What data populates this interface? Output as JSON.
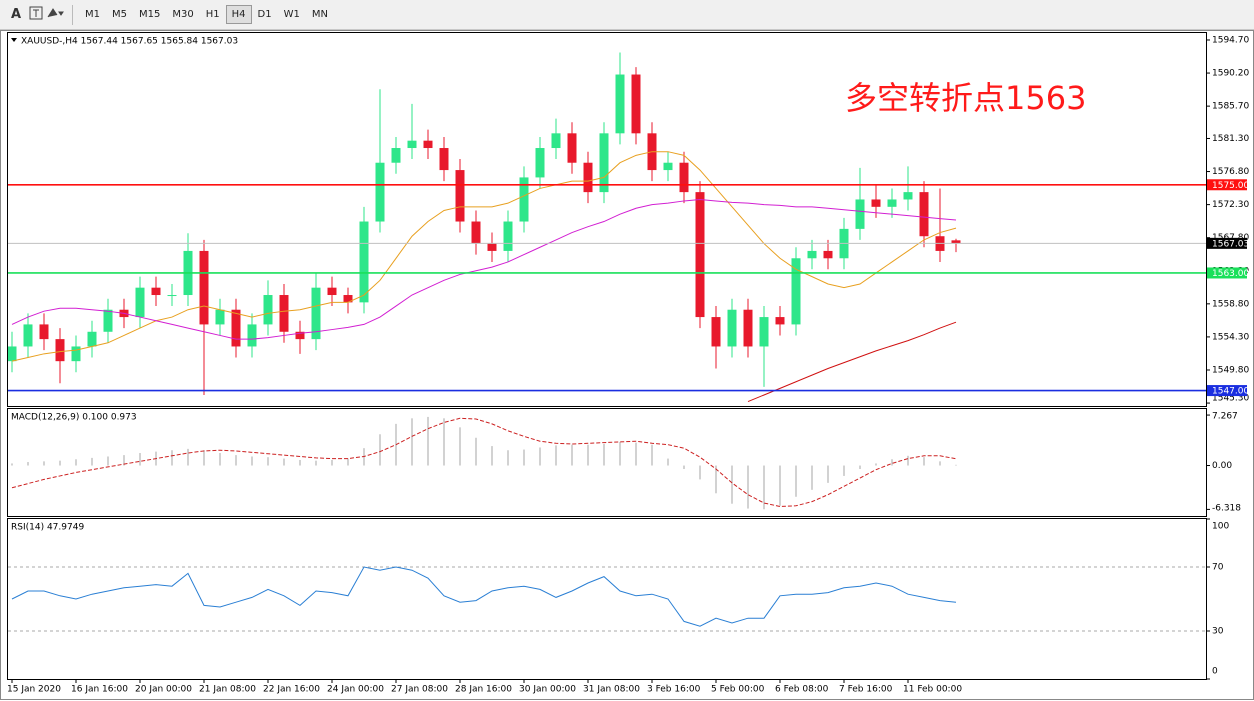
{
  "toolbar": {
    "tools": [
      "A"
    ],
    "timeframes": [
      "M1",
      "M5",
      "M15",
      "M30",
      "H1",
      "H4",
      "D1",
      "W1",
      "MN"
    ],
    "active": "H4"
  },
  "chart_data": [
    {
      "type": "candlestick",
      "title": "XAUUSD-,H4  1567.44 1567.65 1565.84 1567.03",
      "annotation": "多空转折点1563",
      "annotation_color": "#ff1a1a",
      "up_color": "#2ee68a",
      "down_color": "#e8192c",
      "categories": [
        "15 Jan 2020",
        null,
        null,
        null,
        "16 Jan 16:00",
        null,
        null,
        null,
        "20 Jan 00:00",
        null,
        null,
        null,
        "21 Jan 08:00",
        null,
        null,
        null,
        "22 Jan 16:00",
        null,
        null,
        null,
        "24 Jan 00:00",
        null,
        null,
        null,
        "27 Jan 08:00",
        null,
        null,
        null,
        "28 Jan 16:00",
        null,
        null,
        null,
        "30 Jan 00:00",
        null,
        null,
        null,
        "31 Jan 08:00",
        null,
        null,
        null,
        "3 Feb 16:00",
        null,
        null,
        null,
        "5 Feb 00:00",
        null,
        null,
        null,
        "6 Feb 08:00",
        null,
        null,
        null,
        "7 Feb 16:00",
        null,
        null,
        null,
        "11 Feb 00:00",
        null,
        null,
        null
      ],
      "open": [
        1551,
        1553,
        1556,
        1554,
        1551,
        1553,
        1555,
        1558,
        1557,
        1561,
        1560,
        1560,
        1566,
        1556,
        1558,
        1553,
        1556,
        1560,
        1555,
        1554,
        1561,
        1560,
        1559,
        1570,
        1578,
        1580,
        1581,
        1580,
        1577,
        1570,
        1567,
        1566,
        1570,
        1576,
        1580,
        1582,
        1578,
        1574,
        1582,
        1590,
        1582,
        1577,
        1578,
        1574,
        1557,
        1553,
        1558,
        1553,
        1557,
        1556,
        1565,
        1566,
        1565,
        1569,
        1573,
        1572,
        1573,
        1574,
        1568,
        1567.44
      ],
      "high": [
        1555,
        1557.5,
        1557.5,
        1555.5,
        1554.5,
        1556.5,
        1559.5,
        1559.5,
        1562.5,
        1562.5,
        1561.5,
        1568.4,
        1567.5,
        1559.5,
        1559.5,
        1557.5,
        1562,
        1561.5,
        1556.5,
        1563,
        1562.5,
        1561,
        1572,
        1588,
        1581.5,
        1586,
        1582.5,
        1581.5,
        1578.5,
        1571.5,
        1568.5,
        1571.5,
        1577.5,
        1581.5,
        1584,
        1583.5,
        1579.5,
        1583.5,
        1593,
        1591,
        1583.5,
        1579.5,
        1579.5,
        1575.5,
        1558.5,
        1559.5,
        1559.5,
        1558.5,
        1558.5,
        1566.5,
        1567.5,
        1567.5,
        1570.5,
        1577.3,
        1575,
        1574.5,
        1577.5,
        1575.5,
        1574.5,
        1567.65
      ],
      "low": [
        1549.5,
        1551.5,
        1552.5,
        1548,
        1549.5,
        1551.5,
        1553.5,
        1555.5,
        1555.5,
        1558.5,
        1558.5,
        1558.5,
        1546.4,
        1554.5,
        1551.5,
        1551.5,
        1554.5,
        1553.5,
        1552,
        1552.5,
        1558.5,
        1557.5,
        1557.5,
        1568.5,
        1576.5,
        1578.5,
        1578.5,
        1575.5,
        1568.5,
        1565.5,
        1564.5,
        1564.5,
        1568.5,
        1574.5,
        1578.5,
        1576.5,
        1572.5,
        1572.5,
        1580.5,
        1580.5,
        1575.5,
        1575.5,
        1572.5,
        1555.5,
        1550,
        1551.5,
        1551.5,
        1547.5,
        1554.5,
        1554.5,
        1563.5,
        1563.5,
        1563.5,
        1567.5,
        1570.5,
        1570.5,
        1571.5,
        1566.5,
        1564.5,
        1565.84
      ],
      "close": [
        1553,
        1556,
        1554,
        1551,
        1553,
        1555,
        1558,
        1557,
        1561,
        1560,
        1560,
        1566,
        1556,
        1558,
        1553,
        1556,
        1560,
        1555,
        1554,
        1561,
        1560,
        1559,
        1570,
        1578,
        1580,
        1581,
        1580,
        1577,
        1570,
        1567,
        1566,
        1570,
        1576,
        1580,
        1582,
        1578,
        1574,
        1582,
        1590,
        1582,
        1577,
        1578,
        1574,
        1557,
        1553,
        1558,
        1553,
        1557,
        1556,
        1565,
        1566,
        1565,
        1569,
        1573,
        1572,
        1573,
        1574,
        1568,
        1566,
        1567.03
      ],
      "overlays": [
        {
          "color": "#e8a020",
          "values": [
            1551,
            1551.5,
            1552,
            1552.3,
            1552.5,
            1553,
            1553.5,
            1554.5,
            1555.5,
            1556.5,
            1557,
            1558,
            1558.5,
            1558,
            1557.5,
            1557,
            1557.5,
            1557.8,
            1558,
            1558.5,
            1559,
            1559,
            1560,
            1562,
            1565,
            1568,
            1570,
            1571.5,
            1572,
            1572,
            1572,
            1572.5,
            1573.5,
            1574.5,
            1575,
            1575.5,
            1575.5,
            1576,
            1578,
            1579,
            1579.5,
            1579.5,
            1579,
            1577,
            1574.5,
            1572,
            1569.5,
            1567,
            1565,
            1563.5,
            1562.5,
            1561.5,
            1561,
            1561.5,
            1563,
            1564.5,
            1566,
            1567.5,
            1568.5,
            1569.1
          ]
        },
        {
          "color": "#d21fd2",
          "values": [
            1556,
            1557,
            1557.8,
            1558.2,
            1558.2,
            1558,
            1557.8,
            1557.5,
            1557,
            1556.5,
            1556,
            1555.5,
            1555,
            1554.5,
            1554,
            1554,
            1554.2,
            1554.5,
            1554.8,
            1555,
            1555.3,
            1555.6,
            1556,
            1557,
            1558.5,
            1560,
            1561,
            1562,
            1562.8,
            1563.3,
            1563.8,
            1564.5,
            1565.5,
            1566.5,
            1567.5,
            1568.5,
            1569.3,
            1570,
            1571,
            1571.8,
            1572.3,
            1572.5,
            1572.8,
            1573,
            1572.8,
            1572.6,
            1572.5,
            1572.3,
            1572.2,
            1572,
            1572,
            1571.8,
            1571.6,
            1571.4,
            1571.2,
            1571,
            1570.8,
            1570.6,
            1570.4,
            1570.2
          ]
        },
        {
          "color": "#d01010",
          "values": [
            null,
            null,
            null,
            null,
            null,
            null,
            null,
            null,
            null,
            null,
            null,
            null,
            null,
            null,
            null,
            null,
            null,
            null,
            null,
            null,
            null,
            null,
            null,
            null,
            null,
            null,
            null,
            null,
            null,
            null,
            null,
            null,
            null,
            null,
            null,
            null,
            null,
            null,
            null,
            null,
            null,
            null,
            null,
            null,
            null,
            null,
            1545.5,
            1546.4,
            1547.3,
            1548.2,
            1549.1,
            1550,
            1550.8,
            1551.6,
            1552.4,
            1553.1,
            1553.8,
            1554.6,
            1555.5,
            1556.3
          ]
        }
      ],
      "hlines": [
        {
          "value": 1575,
          "label": "1575.00",
          "color": "#ff1010"
        },
        {
          "value": 1563,
          "label": "1563.00",
          "color": "#19e05a"
        },
        {
          "value": 1547,
          "label": "1547.00",
          "color": "#1a2ee0"
        },
        {
          "value": 1567.03,
          "label": "1567.03",
          "color": "#000000",
          "line_color": "#c0c0c0"
        }
      ],
      "ylim": [
        1544.9,
        1595.65
      ],
      "yticks": [
        {
          "value": 1594.7,
          "label": "1594.70"
        },
        {
          "value": 1590.2,
          "label": "1590.20"
        },
        {
          "value": 1585.7,
          "label": "1585.70"
        },
        {
          "value": 1581.3,
          "label": "1581.30"
        },
        {
          "value": 1576.8,
          "label": "1576.80"
        },
        {
          "value": 1572.3,
          "label": "1572.30"
        },
        {
          "value": 1567.8,
          "label": "1567.80"
        },
        {
          "value": 1563.3,
          "label": "1563.30"
        },
        {
          "value": 1558.8,
          "label": "1558.80"
        },
        {
          "value": 1554.3,
          "label": "1554.30"
        },
        {
          "value": 1549.8,
          "label": "1549.80"
        },
        {
          "value": 1545.3,
          "label": "1545.30"
        }
      ],
      "grid": false
    },
    {
      "type": "macd",
      "title": "MACD(12,26,9) 0.100 0.973",
      "color": "#b4b4b4",
      "signal_color": "#cc2020",
      "values": [
        0.3,
        0.5,
        0.6,
        0.7,
        0.9,
        1.1,
        1.3,
        1.5,
        1.8,
        2.0,
        2.2,
        2.4,
        2.2,
        1.8,
        1.5,
        1.3,
        1.2,
        1.0,
        0.8,
        0.7,
        0.8,
        1.0,
        2.5,
        4.5,
        6.0,
        6.8,
        7.0,
        6.8,
        5.5,
        4.0,
        2.8,
        2.2,
        2.3,
        2.6,
        2.9,
        3.0,
        3.0,
        3.1,
        3.4,
        3.3,
        3.0,
        1.0,
        -0.5,
        -2.0,
        -4.0,
        -5.5,
        -6.2,
        -6.3,
        -5.8,
        -4.5,
        -3.5,
        -2.5,
        -1.5,
        -0.5,
        0.3,
        0.9,
        1.4,
        1.2,
        0.6,
        0.1
      ],
      "signal": [
        -3.2,
        -2.6,
        -2.0,
        -1.5,
        -1.0,
        -0.6,
        -0.2,
        0.2,
        0.6,
        1.0,
        1.4,
        1.8,
        2.1,
        2.2,
        2.1,
        1.9,
        1.7,
        1.5,
        1.3,
        1.1,
        1.0,
        1.0,
        1.3,
        2.0,
        3.0,
        4.2,
        5.3,
        6.2,
        6.8,
        6.7,
        6.0,
        5.0,
        4.2,
        3.5,
        3.2,
        3.1,
        3.2,
        3.3,
        3.4,
        3.5,
        3.2,
        3.0,
        2.5,
        1.2,
        -0.5,
        -2.5,
        -4.2,
        -5.4,
        -5.9,
        -5.8,
        -5.2,
        -4.2,
        -3.0,
        -1.8,
        -0.6,
        0.3,
        1.0,
        1.4,
        1.4,
        0.973
      ],
      "ylim": [
        -7.27,
        8.14
      ],
      "yticks": [
        7.267,
        {
          "value": 0,
          "label": "0.00"
        },
        -6.318
      ],
      "grid": false
    },
    {
      "type": "line",
      "title": "RSI(14) 47.9749",
      "color": "#2a7fd4",
      "values": [
        50,
        55,
        55,
        52,
        50,
        53,
        55,
        57,
        58,
        59,
        58,
        66,
        46,
        45,
        48,
        51,
        56,
        52,
        46,
        55,
        54,
        52,
        70,
        68,
        70,
        68,
        63,
        52,
        48,
        49,
        55,
        57,
        58,
        56,
        51,
        55,
        60,
        64,
        55,
        52,
        53,
        50,
        36,
        33,
        38,
        35,
        38,
        38,
        52,
        53,
        53,
        54,
        57,
        58,
        60,
        58,
        53,
        51,
        49,
        47.9749
      ],
      "ylim": [
        0,
        100
      ],
      "yticks": [
        100,
        70,
        30,
        0
      ],
      "grid": true
    }
  ]
}
